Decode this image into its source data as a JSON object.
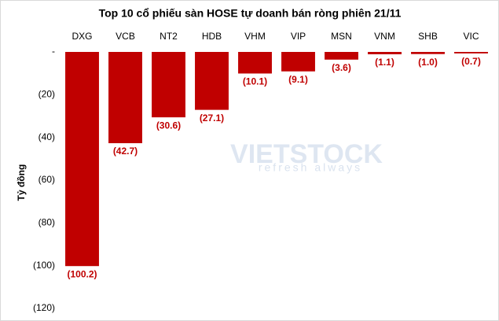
{
  "chart_data": {
    "type": "bar",
    "title": "Top 10 cổ phiếu sàn HOSE tự doanh bán ròng phiên 21/11",
    "y_label": "Tỷ đồng",
    "watermark": "VIETSTOCK",
    "watermark_tagline": "refresh always",
    "categories": [
      "DXG",
      "VCB",
      "NT2",
      "HDB",
      "VHM",
      "VIP",
      "MSN",
      "VNM",
      "SHB",
      "VIC"
    ],
    "values": [
      -100.2,
      -42.7,
      -30.6,
      -27.1,
      -10.1,
      -9.1,
      -3.6,
      -1.1,
      -1.0,
      -0.7
    ],
    "value_labels": [
      "(100.2)",
      "(42.7)",
      "(30.6)",
      "(27.1)",
      "(10.1)",
      "(9.1)",
      "(3.6)",
      "(1.1)",
      "(1.0)",
      "(0.7)"
    ],
    "color": "#c00000",
    "ylim": [
      -120,
      0
    ],
    "yticks": [
      {
        "value": 0,
        "label": "-"
      },
      {
        "value": -20,
        "label": "(20)"
      },
      {
        "value": -40,
        "label": "(40)"
      },
      {
        "value": -60,
        "label": "(60)"
      },
      {
        "value": -80,
        "label": "(80)"
      },
      {
        "value": -100,
        "label": "(100)"
      },
      {
        "value": -120,
        "label": "(120)"
      }
    ],
    "grid": false
  }
}
